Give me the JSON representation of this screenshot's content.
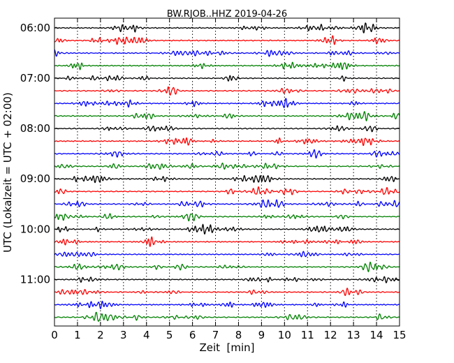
{
  "chart_data": {
    "type": "line",
    "title": "BW.RJOB..HHZ 2019-04-26",
    "xlabel": "Zeit  [min]",
    "ylabel": "UTC (Lokalzeit = UTC + 02:00)",
    "xlim": [
      0,
      15
    ],
    "xticks": [
      0,
      1,
      2,
      3,
      4,
      5,
      6,
      7,
      8,
      9,
      10,
      11,
      12,
      13,
      14,
      15
    ],
    "ytick_labels": [
      "06:00",
      "07:00",
      "08:00",
      "09:00",
      "10:00",
      "11:00"
    ],
    "grid": true,
    "trace_interval_minutes": 15,
    "start_time": "06:00",
    "trace_count": 24,
    "color_cycle": [
      "#000000",
      "#ff0000",
      "#0000ff",
      "#008000"
    ],
    "traces": [
      {
        "start": "06:00",
        "color": "#000000"
      },
      {
        "start": "06:15",
        "color": "#ff0000"
      },
      {
        "start": "06:30",
        "color": "#0000ff"
      },
      {
        "start": "06:45",
        "color": "#008000"
      },
      {
        "start": "07:00",
        "color": "#000000"
      },
      {
        "start": "07:15",
        "color": "#ff0000"
      },
      {
        "start": "07:30",
        "color": "#0000ff"
      },
      {
        "start": "07:45",
        "color": "#008000"
      },
      {
        "start": "08:00",
        "color": "#000000"
      },
      {
        "start": "08:15",
        "color": "#ff0000"
      },
      {
        "start": "08:30",
        "color": "#0000ff"
      },
      {
        "start": "08:45",
        "color": "#008000"
      },
      {
        "start": "09:00",
        "color": "#000000"
      },
      {
        "start": "09:15",
        "color": "#ff0000"
      },
      {
        "start": "09:30",
        "color": "#0000ff"
      },
      {
        "start": "09:45",
        "color": "#008000"
      },
      {
        "start": "10:00",
        "color": "#000000"
      },
      {
        "start": "10:15",
        "color": "#ff0000"
      },
      {
        "start": "10:30",
        "color": "#0000ff"
      },
      {
        "start": "10:45",
        "color": "#008000"
      },
      {
        "start": "11:00",
        "color": "#000000"
      },
      {
        "start": "11:15",
        "color": "#ff0000"
      },
      {
        "start": "11:30",
        "color": "#0000ff"
      },
      {
        "start": "11:45",
        "color": "#008000"
      }
    ]
  }
}
